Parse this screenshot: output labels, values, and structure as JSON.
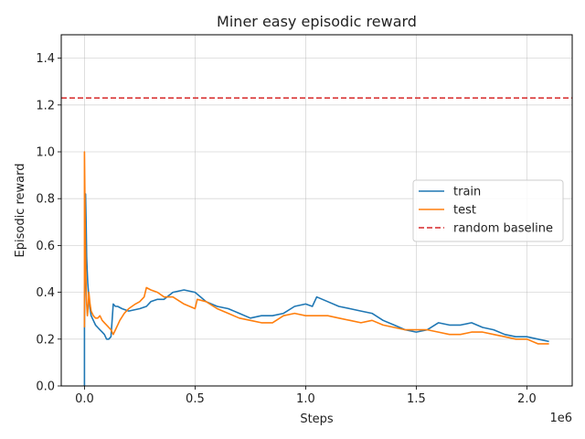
{
  "chart_data": {
    "type": "line",
    "title": "Miner easy episodic reward",
    "xlabel": "Steps",
    "ylabel": "Episodic reward",
    "x_offset_text": "1e6",
    "xlim": [
      -0.105,
      2.205
    ],
    "ylim": [
      0.0,
      1.5
    ],
    "x_ticks": [
      0.0,
      0.5,
      1.0,
      1.5,
      2.0
    ],
    "x_tick_labels": [
      "0.0",
      "0.5",
      "1.0",
      "1.5",
      "2.0"
    ],
    "y_ticks": [
      0.0,
      0.2,
      0.4,
      0.6,
      0.8,
      1.0,
      1.2,
      1.4
    ],
    "y_tick_labels": [
      "0.0",
      "0.2",
      "0.4",
      "0.6",
      "0.8",
      "1.0",
      "1.2",
      "1.4"
    ],
    "grid": true,
    "legend_position": "center-right",
    "series": [
      {
        "name": "train",
        "color": "#1f77b4",
        "x": [
          0.0,
          0.0,
          0.005,
          0.008,
          0.01,
          0.012,
          0.015,
          0.02,
          0.025,
          0.03,
          0.04,
          0.05,
          0.06,
          0.07,
          0.08,
          0.09,
          0.1,
          0.11,
          0.12,
          0.13,
          0.14,
          0.15,
          0.17,
          0.2,
          0.25,
          0.28,
          0.3,
          0.33,
          0.36,
          0.4,
          0.45,
          0.5,
          0.55,
          0.6,
          0.65,
          0.7,
          0.75,
          0.8,
          0.85,
          0.9,
          0.95,
          1.0,
          1.03,
          1.05,
          1.1,
          1.15,
          1.2,
          1.25,
          1.3,
          1.35,
          1.4,
          1.45,
          1.5,
          1.55,
          1.6,
          1.65,
          1.7,
          1.75,
          1.8,
          1.85,
          1.9,
          1.95,
          2.0,
          2.05,
          2.1
        ],
        "y": [
          0.0,
          0.25,
          0.82,
          0.68,
          0.55,
          0.5,
          0.44,
          0.38,
          0.33,
          0.3,
          0.28,
          0.26,
          0.25,
          0.24,
          0.23,
          0.22,
          0.2,
          0.2,
          0.21,
          0.35,
          0.34,
          0.34,
          0.33,
          0.32,
          0.33,
          0.34,
          0.36,
          0.37,
          0.37,
          0.4,
          0.41,
          0.4,
          0.36,
          0.34,
          0.33,
          0.31,
          0.29,
          0.3,
          0.3,
          0.31,
          0.34,
          0.35,
          0.34,
          0.38,
          0.36,
          0.34,
          0.33,
          0.32,
          0.31,
          0.28,
          0.26,
          0.24,
          0.23,
          0.24,
          0.27,
          0.26,
          0.26,
          0.27,
          0.25,
          0.24,
          0.22,
          0.21,
          0.21,
          0.2,
          0.19
        ]
      },
      {
        "name": "test",
        "color": "#ff7f0e",
        "x": [
          0.0,
          0.0,
          0.004,
          0.007,
          0.01,
          0.013,
          0.016,
          0.02,
          0.025,
          0.03,
          0.04,
          0.05,
          0.06,
          0.07,
          0.08,
          0.09,
          0.1,
          0.11,
          0.12,
          0.13,
          0.14,
          0.16,
          0.18,
          0.2,
          0.23,
          0.25,
          0.27,
          0.28,
          0.3,
          0.33,
          0.36,
          0.4,
          0.45,
          0.5,
          0.51,
          0.55,
          0.6,
          0.65,
          0.7,
          0.75,
          0.8,
          0.85,
          0.9,
          0.95,
          1.0,
          1.05,
          1.1,
          1.15,
          1.2,
          1.25,
          1.3,
          1.35,
          1.4,
          1.45,
          1.5,
          1.55,
          1.6,
          1.65,
          1.7,
          1.75,
          1.8,
          1.85,
          1.9,
          1.95,
          2.0,
          2.05,
          2.1
        ],
        "y": [
          0.25,
          1.0,
          0.6,
          0.45,
          0.35,
          0.3,
          0.33,
          0.4,
          0.35,
          0.32,
          0.3,
          0.29,
          0.29,
          0.3,
          0.28,
          0.27,
          0.26,
          0.25,
          0.24,
          0.22,
          0.24,
          0.28,
          0.31,
          0.33,
          0.35,
          0.36,
          0.38,
          0.42,
          0.41,
          0.4,
          0.38,
          0.38,
          0.35,
          0.33,
          0.37,
          0.36,
          0.33,
          0.31,
          0.29,
          0.28,
          0.27,
          0.27,
          0.3,
          0.31,
          0.3,
          0.3,
          0.3,
          0.29,
          0.28,
          0.27,
          0.28,
          0.26,
          0.25,
          0.24,
          0.24,
          0.24,
          0.23,
          0.22,
          0.22,
          0.23,
          0.23,
          0.22,
          0.21,
          0.2,
          0.2,
          0.18,
          0.18
        ]
      }
    ],
    "reference_lines": [
      {
        "name": "random baseline",
        "y": 1.23,
        "color": "#d62728",
        "style": "dashed"
      }
    ]
  }
}
